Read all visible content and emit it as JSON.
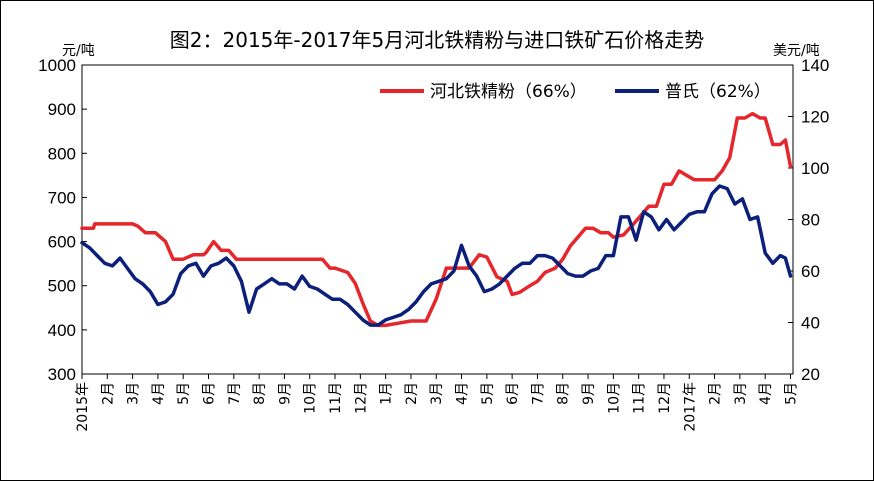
{
  "chart_data": {
    "type": "line",
    "title": "图2：2015年-2017年5月河北铁精粉与进口铁矿石价格走势",
    "ylabel_left": "元/吨",
    "ylabel_right": "美元/吨",
    "y_left": {
      "range": [
        300,
        1000
      ],
      "ticks": [
        300,
        400,
        500,
        600,
        700,
        800,
        900,
        1000
      ]
    },
    "y_right": {
      "range": [
        20,
        140
      ],
      "ticks": [
        20,
        40,
        60,
        80,
        100,
        120,
        140
      ]
    },
    "x_ticks": [
      "2015年",
      "2月",
      "3月",
      "4月",
      "5月",
      "6月",
      "7月",
      "8月",
      "9月",
      "10月",
      "11月",
      "12月",
      "1月",
      "2月",
      "3月",
      "4月",
      "5月",
      "6月",
      "7月",
      "8月",
      "9月",
      "10月",
      "11月",
      "12月",
      "2017年",
      "2月",
      "3月",
      "4月",
      "5月"
    ],
    "x_range": [
      0,
      28.1
    ],
    "legend_position": "top-right",
    "series": [
      {
        "name": "河北铁精粉（66%）",
        "axis": "left",
        "color": "#e5262b",
        "x": [
          0,
          0.45,
          0.5,
          1.0,
          1.5,
          2.0,
          2.2,
          2.5,
          2.9,
          3.0,
          3.3,
          3.6,
          3.8,
          4.0,
          4.4,
          4.8,
          4.9,
          5.2,
          5.5,
          5.8,
          6.1,
          6.5,
          6.8,
          7.0,
          7.5,
          8.0,
          8.5,
          9.0,
          9.5,
          9.8,
          10.0,
          10.5,
          10.8,
          11.1,
          11.4,
          11.7,
          12.0,
          12.5,
          13.0,
          13.3,
          13.6,
          14.0,
          14.4,
          14.7,
          15.0,
          15.3,
          15.7,
          16.0,
          16.4,
          16.8,
          17.0,
          17.3,
          17.7,
          18.0,
          18.3,
          18.7,
          19.0,
          19.3,
          19.6,
          19.9,
          20.2,
          20.5,
          20.8,
          21.0,
          21.4,
          21.8,
          22.1,
          22.4,
          22.7,
          23.0,
          23.3,
          23.6,
          23.9,
          24.2,
          24.5,
          24.8,
          25.0,
          25.3,
          25.6,
          25.9,
          26.2,
          26.5,
          26.8,
          27.0,
          27.3,
          27.6,
          27.8,
          28.0
        ],
        "y": [
          630,
          630,
          640,
          640,
          640,
          640,
          635,
          620,
          620,
          615,
          600,
          560,
          560,
          560,
          570,
          570,
          575,
          600,
          580,
          580,
          560,
          560,
          560,
          560,
          560,
          560,
          560,
          560,
          560,
          540,
          540,
          530,
          505,
          460,
          420,
          410,
          410,
          415,
          420,
          420,
          420,
          470,
          540,
          540,
          540,
          540,
          570,
          565,
          520,
          510,
          480,
          485,
          500,
          510,
          530,
          540,
          560,
          590,
          610,
          630,
          630,
          620,
          620,
          610,
          615,
          640,
          660,
          680,
          680,
          730,
          730,
          760,
          750,
          740,
          740,
          740,
          740,
          760,
          790,
          880,
          880,
          890,
          880,
          880,
          820,
          820,
          830,
          770
        ]
      },
      {
        "name": "普氏（62%）",
        "axis": "right",
        "color": "#0c1f7a",
        "x": [
          0,
          0.3,
          0.6,
          0.9,
          1.2,
          1.5,
          1.8,
          2.1,
          2.4,
          2.7,
          3.0,
          3.3,
          3.6,
          3.9,
          4.2,
          4.5,
          4.8,
          5.1,
          5.4,
          5.7,
          6.0,
          6.3,
          6.6,
          6.9,
          7.2,
          7.5,
          7.8,
          8.1,
          8.4,
          8.7,
          9.0,
          9.3,
          9.6,
          9.9,
          10.2,
          10.5,
          10.8,
          11.1,
          11.4,
          11.7,
          12.0,
          12.3,
          12.6,
          12.9,
          13.2,
          13.5,
          13.8,
          14.1,
          14.4,
          14.7,
          15.0,
          15.3,
          15.6,
          15.9,
          16.2,
          16.5,
          16.8,
          17.1,
          17.4,
          17.7,
          18.0,
          18.3,
          18.6,
          18.9,
          19.2,
          19.5,
          19.8,
          20.1,
          20.4,
          20.7,
          21.0,
          21.3,
          21.6,
          21.9,
          22.2,
          22.5,
          22.8,
          23.1,
          23.4,
          23.7,
          24.0,
          24.3,
          24.6,
          24.9,
          25.2,
          25.5,
          25.8,
          26.1,
          26.4,
          26.7,
          27.0,
          27.3,
          27.6,
          27.8,
          28.0
        ],
        "y": [
          71,
          69,
          66,
          63,
          62,
          65,
          61,
          57,
          55,
          52,
          47,
          48,
          51,
          59,
          62,
          63,
          58,
          62,
          63,
          65,
          62,
          56,
          44,
          53,
          55,
          57,
          55,
          55,
          53,
          58,
          54,
          53,
          51,
          49,
          49,
          47,
          44,
          41,
          39,
          39,
          41,
          42,
          43,
          45,
          48,
          52,
          55,
          56,
          57,
          60,
          70,
          62,
          58,
          52,
          53,
          55,
          58,
          61,
          63,
          63,
          66,
          66,
          65,
          62,
          59,
          58,
          58,
          60,
          61,
          66,
          66,
          81,
          81,
          72,
          83,
          81,
          76,
          80,
          76,
          79,
          82,
          83,
          83,
          90,
          93,
          92,
          86,
          88,
          80,
          81,
          67,
          63,
          66,
          65,
          58
        ]
      }
    ]
  }
}
